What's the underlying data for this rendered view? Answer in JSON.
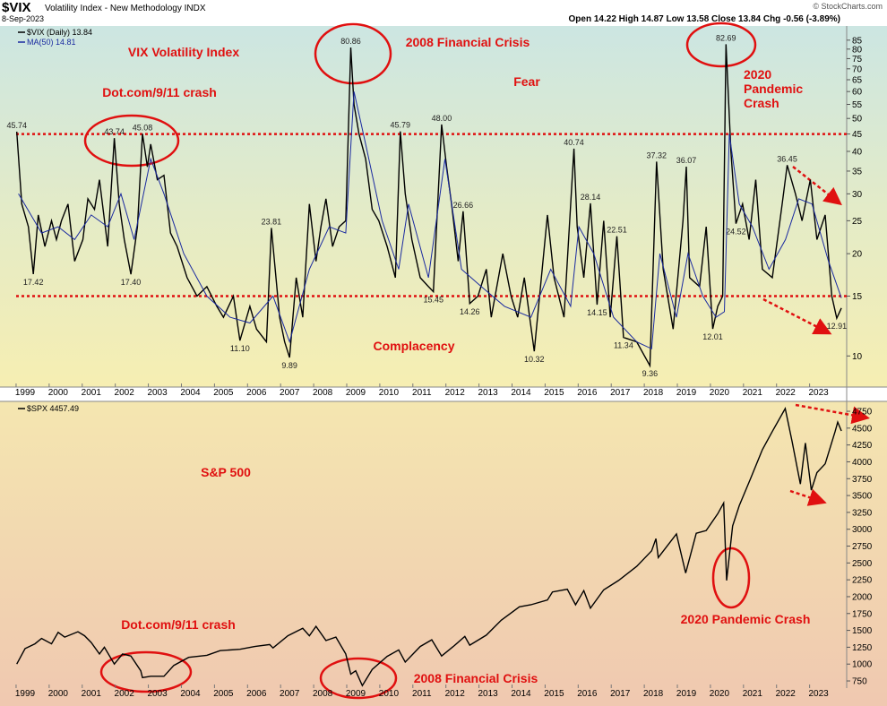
{
  "header": {
    "symbol": "$VIX",
    "title": "Volatility Index - New Methodology INDX",
    "date": "8-Sep-2023",
    "quote": "Open 14.22 High 14.87 Low 13.58 Close 13.84 Chg -0.56 (-3.89%)",
    "credit": "© StockCharts.com"
  },
  "chart_data": [
    {
      "type": "line",
      "log_scale": true,
      "grid": false,
      "xlim": [
        1998.73,
        2023.85
      ],
      "xticks": [
        1999,
        2000,
        2001,
        2002,
        2003,
        2004,
        2005,
        2006,
        2007,
        2008,
        2009,
        2010,
        2011,
        2012,
        2013,
        2014,
        2015,
        2016,
        2017,
        2018,
        2019,
        2020,
        2021,
        2022,
        2023
      ],
      "ylim": [
        8.1,
        93
      ],
      "yticks": [
        10,
        15,
        20,
        25,
        30,
        35,
        40,
        45,
        50,
        55,
        60,
        65,
        70,
        75,
        80,
        85
      ],
      "reference_lines": [
        45,
        15
      ],
      "reference_color": "#e01010",
      "series": [
        {
          "name": "$VIX (Daily) 13.84",
          "color": "#000000",
          "x": [
            1998.75,
            1998.9,
            1999.1,
            1999.25,
            1999.4,
            1999.6,
            1999.8,
            1999.95,
            2000.1,
            2000.3,
            2000.5,
            2000.75,
            2000.9,
            2001.1,
            2001.25,
            2001.5,
            2001.7,
            2001.85,
            2002.0,
            2002.2,
            2002.4,
            2002.55,
            2002.7,
            2002.8,
            2003.0,
            2003.2,
            2003.4,
            2003.6,
            2003.9,
            2004.2,
            2004.5,
            2004.8,
            2005.0,
            2005.3,
            2005.5,
            2005.8,
            2006.0,
            2006.3,
            2006.45,
            2006.7,
            2006.85,
            2007.0,
            2007.2,
            2007.4,
            2007.6,
            2007.8,
            2007.95,
            2008.1,
            2008.3,
            2008.5,
            2008.7,
            2008.85,
            2008.95,
            2009.1,
            2009.3,
            2009.5,
            2009.7,
            2009.95,
            2010.2,
            2010.35,
            2010.5,
            2010.7,
            2010.95,
            2011.2,
            2011.35,
            2011.6,
            2011.75,
            2011.9,
            2012.1,
            2012.25,
            2012.45,
            2012.7,
            2012.95,
            2013.1,
            2013.45,
            2013.7,
            2013.9,
            2014.1,
            2014.4,
            2014.8,
            2015.0,
            2015.3,
            2015.6,
            2015.7,
            2015.9,
            2016.1,
            2016.3,
            2016.5,
            2016.7,
            2016.9,
            2017.1,
            2017.5,
            2017.9,
            2018.1,
            2018.3,
            2018.6,
            2018.9,
            2019.0,
            2019.1,
            2019.4,
            2019.6,
            2019.8,
            2019.95,
            2020.1,
            2020.2,
            2020.35,
            2020.5,
            2020.7,
            2020.9,
            2021.1,
            2021.3,
            2021.6,
            2021.9,
            2022.05,
            2022.3,
            2022.5,
            2022.75,
            2022.95,
            2023.2,
            2023.4,
            2023.55,
            2023.69
          ],
          "values": [
            45.74,
            28,
            24,
            17.42,
            26,
            21,
            25,
            22,
            25,
            28,
            19,
            22,
            29,
            27,
            33,
            21,
            43.74,
            28,
            22,
            17.4,
            24,
            45.08,
            36,
            42,
            33,
            34,
            23,
            21,
            17,
            15,
            16,
            14,
            13,
            15,
            11.1,
            14,
            12,
            11,
            23.81,
            13,
            11,
            9.89,
            17,
            13,
            28,
            19,
            24,
            29,
            21,
            24,
            25,
            80.86,
            55,
            45,
            38,
            27,
            25,
            21,
            17,
            45.79,
            30,
            22,
            17,
            16,
            15.45,
            48.0,
            36,
            28,
            19,
            26.66,
            14.26,
            15,
            18,
            13,
            20,
            15,
            13,
            17,
            10.32,
            26,
            17,
            13,
            40.74,
            24,
            17,
            28.14,
            14.15,
            25,
            13,
            22.51,
            11.34,
            11,
            9.36,
            37.32,
            18,
            12,
            25,
            36.07,
            17,
            16,
            24,
            12.01,
            14,
            15,
            82.69,
            40,
            24.52,
            28,
            22,
            33,
            18,
            17,
            28,
            36.45,
            30,
            25,
            33,
            22,
            26,
            15,
            12.91,
            13.84
          ],
          "value_labels": [
            "45.74",
            null,
            null,
            "17.42",
            null,
            null,
            null,
            null,
            null,
            null,
            null,
            null,
            null,
            null,
            null,
            null,
            "43.74",
            null,
            null,
            "17.40",
            null,
            "45.08",
            null,
            null,
            null,
            null,
            null,
            null,
            null,
            null,
            null,
            null,
            null,
            null,
            "11.10",
            null,
            null,
            null,
            "23.81",
            null,
            null,
            "9.89",
            null,
            null,
            null,
            null,
            null,
            null,
            null,
            null,
            null,
            "80.86",
            null,
            null,
            null,
            null,
            null,
            null,
            null,
            "45.79",
            null,
            null,
            null,
            null,
            "15.45",
            "48.00",
            null,
            null,
            null,
            "26.66",
            "14.26",
            null,
            null,
            null,
            null,
            null,
            null,
            null,
            "10.32",
            null,
            null,
            null,
            "40.74",
            null,
            null,
            "28.14",
            "14.15",
            null,
            null,
            "22.51",
            "11.34",
            null,
            "9.36",
            "37.32",
            null,
            null,
            null,
            "36.07",
            null,
            null,
            null,
            "12.01",
            null,
            null,
            "82.69",
            null,
            "24.52",
            null,
            null,
            null,
            null,
            null,
            null,
            "36.45",
            null,
            null,
            null,
            null,
            null,
            null,
            "12.91",
            null
          ]
        },
        {
          "name": "MA(50) 14.81",
          "color": "#1a2aa0",
          "x": [
            1998.8,
            1999.5,
            2000,
            2000.5,
            2001,
            2001.5,
            2001.9,
            2002.3,
            2002.8,
            2003.2,
            2003.8,
            2004.5,
            2005.2,
            2005.8,
            2006.5,
            2007.0,
            2007.6,
            2008.2,
            2008.7,
            2008.95,
            2009.3,
            2009.8,
            2010.3,
            2010.6,
            2011.2,
            2011.7,
            2012.2,
            2012.8,
            2013.5,
            2014.3,
            2014.9,
            2015.5,
            2015.75,
            2016.2,
            2016.8,
            2017.5,
            2017.95,
            2018.2,
            2018.7,
            2019.05,
            2019.5,
            2019.9,
            2020.15,
            2020.3,
            2020.6,
            2021.0,
            2021.5,
            2022.0,
            2022.4,
            2022.8,
            2023.3,
            2023.69
          ],
          "values": [
            30,
            23,
            24,
            22,
            26,
            24,
            30,
            22,
            38,
            30,
            20,
            15,
            13,
            12.5,
            15,
            11,
            18,
            24,
            23,
            60,
            42,
            25,
            18,
            28,
            17,
            38,
            18,
            16,
            14,
            13,
            18,
            14,
            24,
            20,
            13,
            11,
            10.5,
            20,
            13,
            20,
            15,
            13,
            13.5,
            45,
            28,
            24,
            18,
            22,
            29,
            28,
            19,
            14.81
          ]
        }
      ],
      "annotations": [
        "VIX Volatility Index",
        "Dot.com/9/11 crash",
        "2008 Financial Crisis",
        "Fear",
        [
          "2020",
          "Pandemic",
          "Crash"
        ],
        "Complacency"
      ],
      "annotation_color": "#e01010"
    },
    {
      "type": "line",
      "log_scale": false,
      "grid": false,
      "xlim": [
        1998.73,
        2023.85
      ],
      "xticks": [
        1999,
        2000,
        2001,
        2002,
        2003,
        2004,
        2005,
        2006,
        2007,
        2008,
        2009,
        2010,
        2011,
        2012,
        2013,
        2014,
        2015,
        2016,
        2017,
        2018,
        2019,
        2020,
        2021,
        2022,
        2023
      ],
      "ylim": [
        644,
        4870
      ],
      "yticks": [
        750,
        1000,
        1250,
        1500,
        1750,
        2000,
        2250,
        2500,
        2750,
        3000,
        3250,
        3500,
        3750,
        4000,
        4250,
        4500,
        4750
      ],
      "series": [
        {
          "name": "$SPX 4457.49",
          "color": "#000000",
          "x": [
            1998.75,
            1999.0,
            1999.3,
            1999.5,
            1999.8,
            2000.0,
            2000.2,
            2000.6,
            2000.8,
            2001.0,
            2001.25,
            2001.4,
            2001.7,
            2001.95,
            2002.2,
            2002.5,
            2002.55,
            2002.8,
            2003.2,
            2003.5,
            2003.95,
            2004.5,
            2004.9,
            2005.5,
            2005.95,
            2006.4,
            2006.5,
            2006.95,
            2007.4,
            2007.6,
            2007.8,
            2008.1,
            2008.4,
            2008.7,
            2008.85,
            2009.0,
            2009.2,
            2009.5,
            2009.95,
            2010.3,
            2010.5,
            2010.95,
            2011.3,
            2011.6,
            2011.95,
            2012.3,
            2012.45,
            2012.95,
            2013.4,
            2013.95,
            2014.3,
            2014.8,
            2014.95,
            2015.4,
            2015.65,
            2015.9,
            2016.1,
            2016.5,
            2016.95,
            2017.5,
            2017.95,
            2018.08,
            2018.15,
            2018.7,
            2018.98,
            2019.3,
            2019.6,
            2019.95,
            2020.13,
            2020.22,
            2020.4,
            2020.6,
            2020.95,
            2021.3,
            2021.6,
            2021.99,
            2022.2,
            2022.45,
            2022.6,
            2022.78,
            2022.95,
            2023.2,
            2023.5,
            2023.58,
            2023.69
          ],
          "values": [
            1000,
            1230,
            1300,
            1380,
            1300,
            1470,
            1400,
            1480,
            1420,
            1320,
            1150,
            1250,
            1000,
            1150,
            1120,
            900,
            800,
            820,
            820,
            980,
            1100,
            1130,
            1200,
            1220,
            1260,
            1290,
            1240,
            1420,
            1530,
            1420,
            1560,
            1350,
            1400,
            1150,
            850,
            900,
            680,
            920,
            1115,
            1210,
            1030,
            1260,
            1360,
            1120,
            1260,
            1410,
            1280,
            1430,
            1650,
            1850,
            1880,
            1950,
            2070,
            2110,
            1880,
            2090,
            1830,
            2100,
            2240,
            2450,
            2680,
            2860,
            2580,
            2930,
            2350,
            2940,
            2980,
            3230,
            3390,
            2240,
            3050,
            3350,
            3760,
            4180,
            4450,
            4790,
            4300,
            3670,
            4280,
            3580,
            3840,
            3970,
            4450,
            4590,
            4457.49
          ]
        }
      ],
      "annotations": [
        "S&P 500",
        "Dot.com/9/11 crash",
        "2008 Financial Crisis",
        "2020 Pandemic Crash"
      ],
      "annotation_color": "#e01010"
    }
  ]
}
